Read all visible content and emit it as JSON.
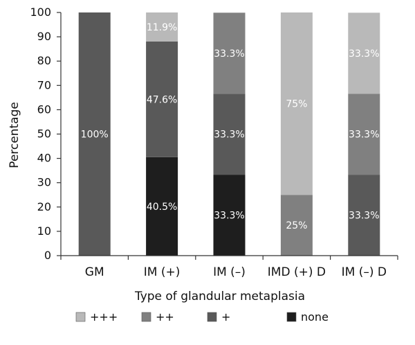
{
  "chart_data": {
    "type": "bar",
    "stacked": true,
    "categories": [
      "GM",
      "IM (+)",
      "IM (–)",
      "IMD (+) D",
      "IM (–) D"
    ],
    "series": [
      {
        "name": "none",
        "color": "#1e1e1e",
        "values": [
          0,
          40.5,
          33.3,
          0,
          0
        ]
      },
      {
        "name": "+",
        "color": "#595959",
        "values": [
          100,
          47.6,
          33.3,
          0,
          33.3
        ]
      },
      {
        "name": "++",
        "color": "#808080",
        "values": [
          0,
          0,
          33.3,
          25,
          33.3
        ]
      },
      {
        "name": "+++",
        "color": "#b9b9b9",
        "values": [
          0,
          11.9,
          0,
          75,
          33.3
        ]
      }
    ],
    "segment_labels": [
      [
        "",
        "100%",
        "",
        ""
      ],
      [
        "40.5%",
        "47.6%",
        "",
        "11.9%"
      ],
      [
        "33.3%",
        "33.3%",
        "33.3%",
        ""
      ],
      [
        "",
        "",
        "25%",
        "75%"
      ],
      [
        "",
        "33.3%",
        "33.3%",
        "33.3%"
      ]
    ],
    "ylabel": "Percentage",
    "xlabel": "Type of glandular metaplasia",
    "ylim": [
      0,
      100
    ],
    "yticks": [
      0,
      10,
      20,
      30,
      40,
      50,
      60,
      70,
      80,
      90,
      100
    ],
    "grid": false,
    "legend_position": "bottom",
    "legend_order": [
      "+++",
      "++",
      "+",
      "none"
    ]
  }
}
